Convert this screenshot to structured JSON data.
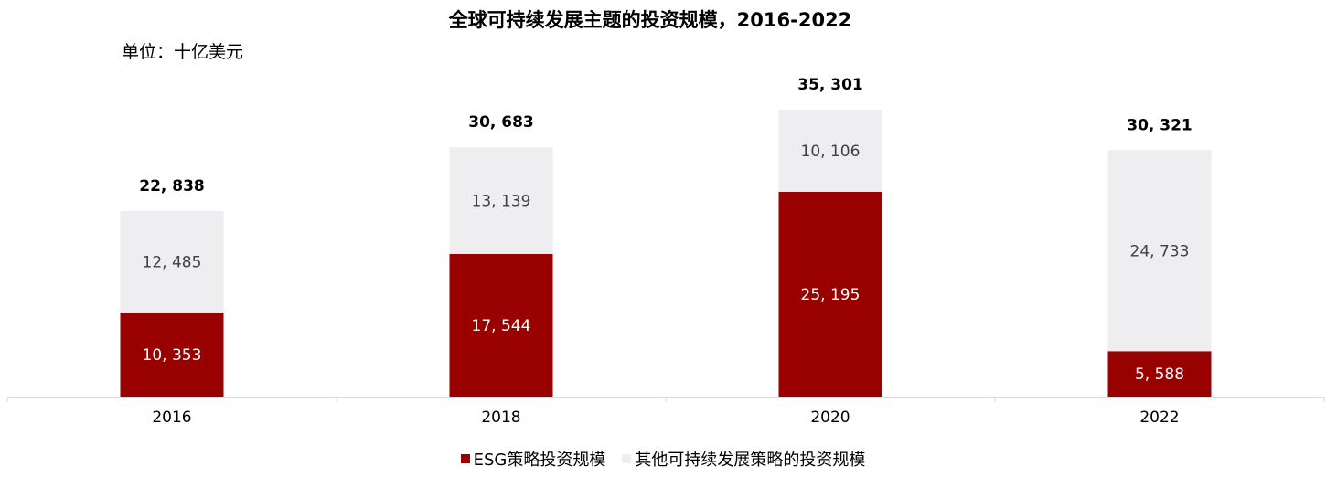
{
  "colors": {
    "esg": "#990000",
    "other": "#eeeef0",
    "axis": "#d9d9d9",
    "inner_label_esg": "#ffffff",
    "inner_label_other": "#404040"
  },
  "chart_data": {
    "type": "bar",
    "stacked": true,
    "title": "全球可持续发展主题的投资规模，2016-2022",
    "unit": "单位：十亿美元",
    "categories": [
      "2016",
      "2018",
      "2020",
      "2022"
    ],
    "series": [
      {
        "name": "ESG策略投资规模",
        "values": [
          10353,
          17544,
          25195,
          5588
        ],
        "labels": [
          "10, 353",
          "17, 544",
          "25, 195",
          "5, 588"
        ]
      },
      {
        "name": "其他可持续发展策略的投资规模",
        "values": [
          12485,
          13139,
          10106,
          24733
        ],
        "labels": [
          "12, 485",
          "13, 139",
          "10, 106",
          "24, 733"
        ]
      }
    ],
    "totals": [
      22838,
      30683,
      35301,
      30321
    ],
    "total_labels": [
      "22, 838",
      "30, 683",
      "35, 301",
      "30, 321"
    ],
    "ylim": [
      0,
      35301
    ],
    "grid": false,
    "legend_position": "bottom"
  }
}
